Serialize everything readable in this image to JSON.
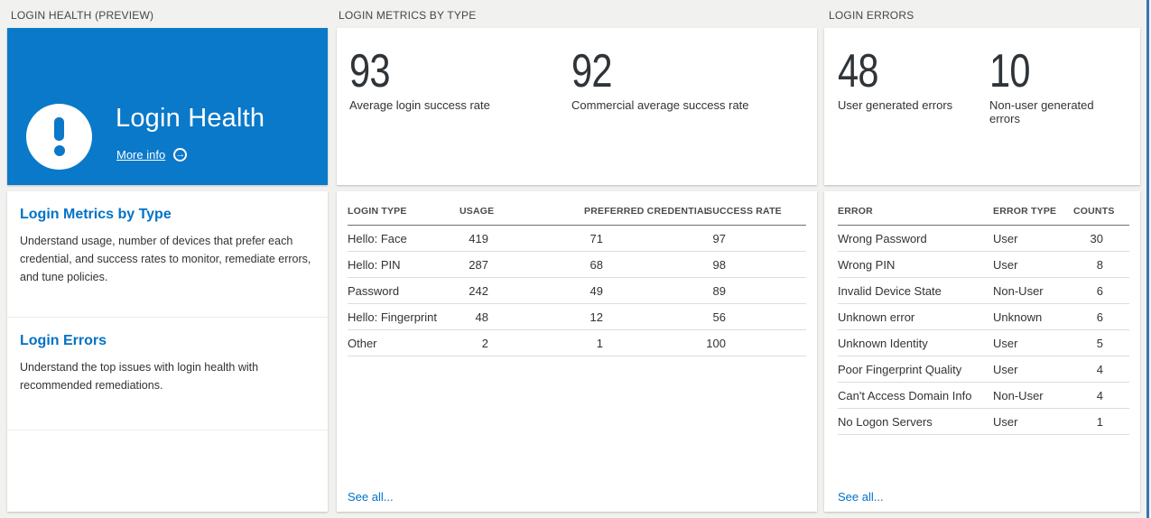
{
  "colors": {
    "tile_blue": "#0a79c9",
    "link_blue": "#0072c6",
    "edge_blue": "#3b74b0",
    "number_ink": "#2f3438"
  },
  "icons": {
    "warning_icon": "exclamation-circle",
    "more_info_arrow": "arrow-right-circle",
    "arrow_glyph": "→"
  },
  "login_health": {
    "header": "LOGIN HEALTH (PREVIEW)",
    "tile": {
      "title": "Login Health",
      "more_info": "More info"
    },
    "sections": [
      {
        "title": "Login Metrics by Type",
        "description": "Understand usage, number of devices that prefer each credential, and success rates to monitor, remediate errors, and tune policies."
      },
      {
        "title": "Login Errors",
        "description": "Understand the top issues with login health with recommended remediations."
      }
    ]
  },
  "login_metrics": {
    "header": "LOGIN METRICS BY TYPE",
    "stats": [
      {
        "value": "93",
        "label": "Average login success rate"
      },
      {
        "value": "92",
        "label": "Commercial average success rate"
      }
    ],
    "table": {
      "headers": [
        "LOGIN TYPE",
        "USAGE",
        "PREFERRED CREDENTIAL",
        "SUCCESS RATE"
      ],
      "rows": [
        [
          "Hello: Face",
          "419",
          "71",
          "97"
        ],
        [
          "Hello: PIN",
          "287",
          "68",
          "98"
        ],
        [
          "Password",
          "242",
          "49",
          "89"
        ],
        [
          "Hello: Fingerprint",
          "48",
          "12",
          "56"
        ],
        [
          "Other",
          "2",
          "1",
          "100"
        ]
      ]
    },
    "see_all": "See all..."
  },
  "login_errors": {
    "header": "LOGIN ERRORS",
    "stats": [
      {
        "value": "48",
        "label": "User generated errors"
      },
      {
        "value": "10",
        "label": "Non-user generated errors"
      }
    ],
    "table": {
      "headers": [
        "ERROR",
        "ERROR TYPE",
        "COUNTS"
      ],
      "rows": [
        [
          "Wrong Password",
          "User",
          "30"
        ],
        [
          "Wrong PIN",
          "User",
          "8"
        ],
        [
          "Invalid Device State",
          "Non-User",
          "6"
        ],
        [
          "Unknown error",
          "Unknown",
          "6"
        ],
        [
          "Unknown Identity",
          "User",
          "5"
        ],
        [
          "Poor Fingerprint Quality",
          "User",
          "4"
        ],
        [
          "Can't Access Domain Info",
          "Non-User",
          "4"
        ],
        [
          "No Logon Servers",
          "User",
          "1"
        ]
      ]
    },
    "see_all": "See all..."
  }
}
